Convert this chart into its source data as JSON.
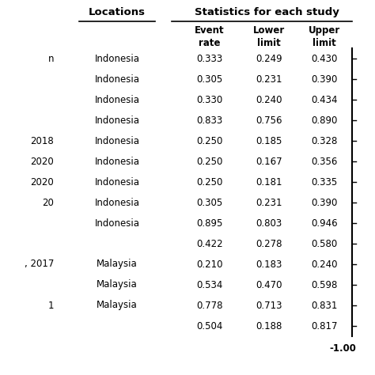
{
  "header_group1": "Locations",
  "header_group2": "Statistics for each study",
  "sub_headers": [
    "Event\nrate",
    "Lower\nlimit",
    "Upper\nlimit"
  ],
  "rows": [
    {
      "left_text": "n",
      "location": "Indonesia",
      "event_rate": "0.333",
      "lower": "0.249",
      "upper": "0.430"
    },
    {
      "left_text": "",
      "location": "Indonesia",
      "event_rate": "0.305",
      "lower": "0.231",
      "upper": "0.390"
    },
    {
      "left_text": "",
      "location": "Indonesia",
      "event_rate": "0.330",
      "lower": "0.240",
      "upper": "0.434"
    },
    {
      "left_text": "",
      "location": "Indonesia",
      "event_rate": "0.833",
      "lower": "0.756",
      "upper": "0.890"
    },
    {
      "left_text": "2018",
      "location": "Indonesia",
      "event_rate": "0.250",
      "lower": "0.185",
      "upper": "0.328"
    },
    {
      "left_text": "2020",
      "location": "Indonesia",
      "event_rate": "0.250",
      "lower": "0.167",
      "upper": "0.356"
    },
    {
      "left_text": "2020",
      "location": "Indonesia",
      "event_rate": "0.250",
      "lower": "0.181",
      "upper": "0.335"
    },
    {
      "left_text": "20",
      "location": "Indonesia",
      "event_rate": "0.305",
      "lower": "0.231",
      "upper": "0.390"
    },
    {
      "left_text": "",
      "location": "Indonesia",
      "event_rate": "0.895",
      "lower": "0.803",
      "upper": "0.946"
    },
    {
      "left_text": "",
      "location": "",
      "event_rate": "0.422",
      "lower": "0.278",
      "upper": "0.580"
    },
    {
      "left_text": ", 2017",
      "location": "Malaysia",
      "event_rate": "0.210",
      "lower": "0.183",
      "upper": "0.240"
    },
    {
      "left_text": "",
      "location": "Malaysia",
      "event_rate": "0.534",
      "lower": "0.470",
      "upper": "0.598"
    },
    {
      "left_text": "1",
      "location": "Malaysia",
      "event_rate": "0.778",
      "lower": "0.713",
      "upper": "0.831"
    },
    {
      "left_text": "",
      "location": "",
      "event_rate": "0.504",
      "lower": "0.188",
      "upper": "0.817"
    }
  ],
  "bottom_label": "-1.00",
  "bg_color": "#ffffff",
  "text_color": "#000000",
  "vertical_line_color": "#000000",
  "font_size": 8.5,
  "header_font_size": 9.5
}
